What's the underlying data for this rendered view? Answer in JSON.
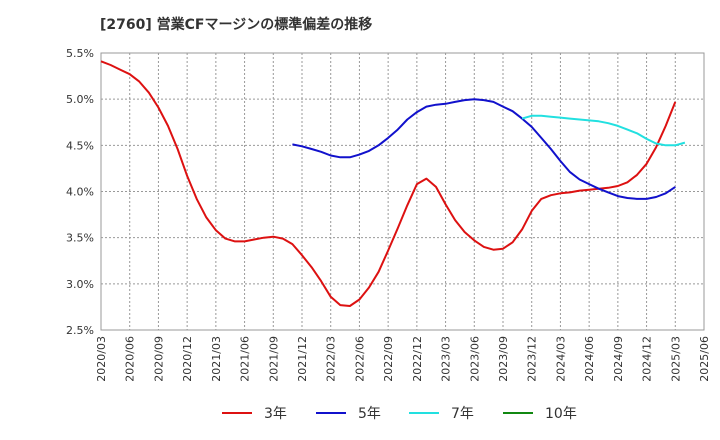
{
  "chart_data": {
    "type": "line",
    "title": "[2760]  営業CFマージンの標準偏差の推移",
    "xlabel": "",
    "ylabel": "",
    "ylim": [
      2.5,
      5.5
    ],
    "yticks": [
      2.5,
      3.0,
      3.5,
      4.0,
      4.5,
      5.0,
      5.5
    ],
    "ytick_labels": [
      "2.5%",
      "3.0%",
      "3.5%",
      "4.0%",
      "4.5%",
      "5.0%",
      "5.5%"
    ],
    "x_labels": [
      "2020/03",
      "2020/06",
      "2020/09",
      "2020/12",
      "2021/03",
      "2021/06",
      "2021/09",
      "2021/12",
      "2022/03",
      "2022/06",
      "2022/09",
      "2022/12",
      "2023/03",
      "2023/06",
      "2023/09",
      "2023/12",
      "2024/03",
      "2024/06",
      "2024/09",
      "2024/12",
      "2025/03",
      "2025/06"
    ],
    "grid": true,
    "legend_position": "bottom",
    "series": [
      {
        "name": "3年",
        "color": "#dd1111",
        "start_index": 0,
        "values": [
          5.41,
          5.37,
          5.32,
          5.27,
          5.19,
          5.07,
          4.91,
          4.71,
          4.46,
          4.17,
          3.92,
          3.72,
          3.58,
          3.49,
          3.46,
          3.46,
          3.48,
          3.5,
          3.51,
          3.49,
          3.43,
          3.31,
          3.18,
          3.03,
          2.86,
          2.77,
          2.76,
          2.83,
          2.96,
          3.13,
          3.36,
          3.6,
          3.85,
          4.08,
          4.14,
          4.05,
          3.86,
          3.69,
          3.56,
          3.47,
          3.4,
          3.37,
          3.38,
          3.45,
          3.59,
          3.79,
          3.92,
          3.96,
          3.98,
          3.99,
          4.01,
          4.02,
          4.03,
          4.04,
          4.06,
          4.1,
          4.18,
          4.3,
          4.48,
          4.71,
          4.97
        ]
      },
      {
        "name": "5年",
        "color": "#1111cc",
        "start_index": 20,
        "values": [
          4.51,
          4.49,
          4.46,
          4.43,
          4.39,
          4.37,
          4.37,
          4.4,
          4.44,
          4.5,
          4.58,
          4.67,
          4.78,
          4.86,
          4.92,
          4.94,
          4.95,
          4.97,
          4.99,
          5.0,
          4.99,
          4.97,
          4.92,
          4.87,
          4.79,
          4.7,
          4.58,
          4.46,
          4.33,
          4.21,
          4.13,
          4.08,
          4.03,
          3.99,
          3.95,
          3.93,
          3.92,
          3.92,
          3.94,
          3.98,
          4.05
        ]
      },
      {
        "name": "7年",
        "color": "#22e0e0",
        "start_index": 44,
        "values": [
          4.79,
          4.82,
          4.82,
          4.81,
          4.8,
          4.79,
          4.78,
          4.77,
          4.76,
          4.74,
          4.71,
          4.67,
          4.63,
          4.57,
          4.52,
          4.5,
          4.5,
          4.53
        ]
      },
      {
        "name": "10年",
        "color": "#118811",
        "start_index": 0,
        "values": []
      }
    ]
  }
}
